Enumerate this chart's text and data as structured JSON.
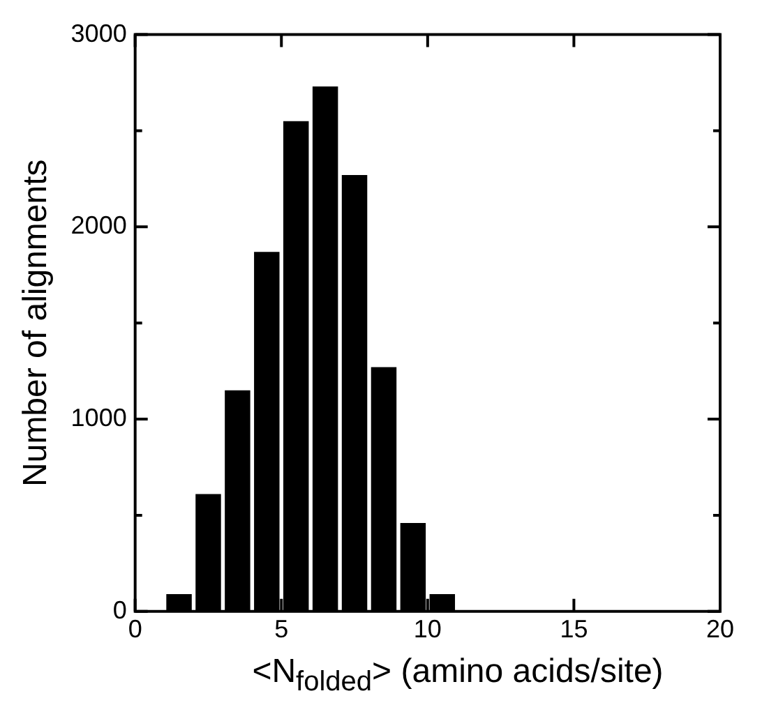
{
  "chart_data": {
    "type": "histogram",
    "xlabel": "<N$_{folded}$> (amino acids/site)",
    "ylabel": "Number of alignments",
    "bins": [
      1,
      2,
      3,
      4,
      5,
      6,
      7,
      8,
      9,
      10,
      11
    ],
    "values": [
      90,
      610,
      1150,
      1870,
      2550,
      2730,
      2270,
      1270,
      460,
      90
    ],
    "color": "#000000",
    "xlim": [
      0,
      20
    ],
    "xticks": [
      0,
      5,
      10,
      15,
      20
    ],
    "ylim": [
      0,
      3000
    ],
    "yticks": [
      0,
      {
        "value": 500,
        "label": null
      },
      1000,
      {
        "value": 1500,
        "label": null
      },
      2000,
      {
        "value": 2500,
        "label": null
      },
      3000
    ],
    "grid": false,
    "legend": false
  }
}
